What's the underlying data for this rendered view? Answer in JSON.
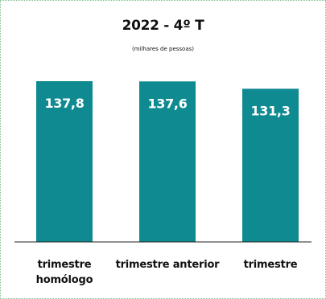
{
  "chart_data": {
    "type": "bar",
    "title": "2022 - 4º T",
    "subtitle": "(milhares de pessoas)",
    "categories": [
      "trimestre\nhomólogo",
      "trimestre anterior",
      "trimestre"
    ],
    "values": [
      137.8,
      137.6,
      131.3
    ],
    "value_labels": [
      "137,8",
      "137,6",
      "131,3"
    ],
    "bar_color": "#0e8a90",
    "value_label_color": "#ffffff",
    "baseline_color": "#222222",
    "grid": false,
    "legend": "none"
  }
}
